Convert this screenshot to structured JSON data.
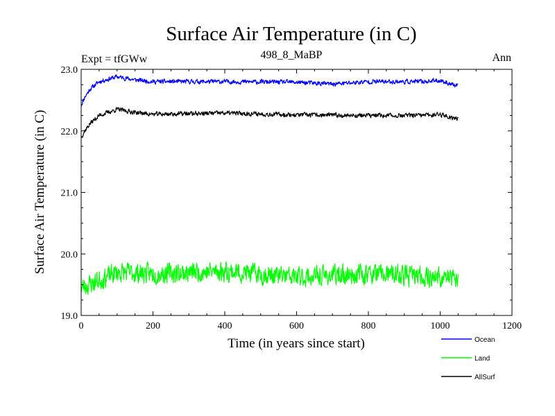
{
  "chart_data": {
    "type": "line",
    "title": "Surface Air Temperature (in C)",
    "subtitle_left": "Expt = tfGWw",
    "subtitle_center": "498_8_MaBP",
    "subtitle_right": "Ann",
    "xlabel": "Time (in years since start)",
    "ylabel": "Surface Air Temperature (in C)",
    "xlim": [
      0,
      1200
    ],
    "ylim": [
      19.0,
      23.0
    ],
    "x_ticks": [
      0,
      200,
      400,
      600,
      800,
      1000,
      1200
    ],
    "x_tick_labels": [
      "0",
      "200",
      "400",
      "600",
      "800",
      "1000",
      "1200"
    ],
    "y_ticks": [
      19.0,
      20.0,
      21.0,
      22.0,
      23.0
    ],
    "y_tick_labels": [
      "19.0",
      "20.0",
      "21.0",
      "22.0",
      "23.0"
    ],
    "x_range_years": [
      0,
      1050
    ],
    "series": [
      {
        "name": "Ocean",
        "color": "#0000ff",
        "keypoints": [
          [
            0,
            22.42
          ],
          [
            10,
            22.55
          ],
          [
            25,
            22.68
          ],
          [
            50,
            22.8
          ],
          [
            100,
            22.88
          ],
          [
            150,
            22.83
          ],
          [
            200,
            22.8
          ],
          [
            400,
            22.8
          ],
          [
            600,
            22.79
          ],
          [
            700,
            22.76
          ],
          [
            800,
            22.8
          ],
          [
            950,
            22.8
          ],
          [
            1000,
            22.82
          ],
          [
            1030,
            22.76
          ],
          [
            1050,
            22.72
          ]
        ],
        "noise_amplitude": 0.05,
        "noise_seed": 11
      },
      {
        "name": "Land",
        "color": "#00ff00",
        "keypoints": [
          [
            0,
            19.45
          ],
          [
            100,
            19.7
          ],
          [
            200,
            19.68
          ],
          [
            400,
            19.72
          ],
          [
            600,
            19.62
          ],
          [
            800,
            19.68
          ],
          [
            1000,
            19.62
          ],
          [
            1050,
            19.6
          ]
        ],
        "noise_amplitude": 0.22,
        "noise_seed": 23
      },
      {
        "name": "AllSurf",
        "color": "#000000",
        "keypoints": [
          [
            0,
            21.9
          ],
          [
            10,
            22.0
          ],
          [
            25,
            22.12
          ],
          [
            50,
            22.25
          ],
          [
            100,
            22.35
          ],
          [
            150,
            22.3
          ],
          [
            200,
            22.27
          ],
          [
            400,
            22.29
          ],
          [
            600,
            22.26
          ],
          [
            800,
            22.25
          ],
          [
            950,
            22.25
          ],
          [
            1000,
            22.27
          ],
          [
            1030,
            22.22
          ],
          [
            1050,
            22.2
          ]
        ],
        "noise_amplitude": 0.05,
        "noise_seed": 37
      }
    ],
    "legend_position": "bottom-right"
  }
}
